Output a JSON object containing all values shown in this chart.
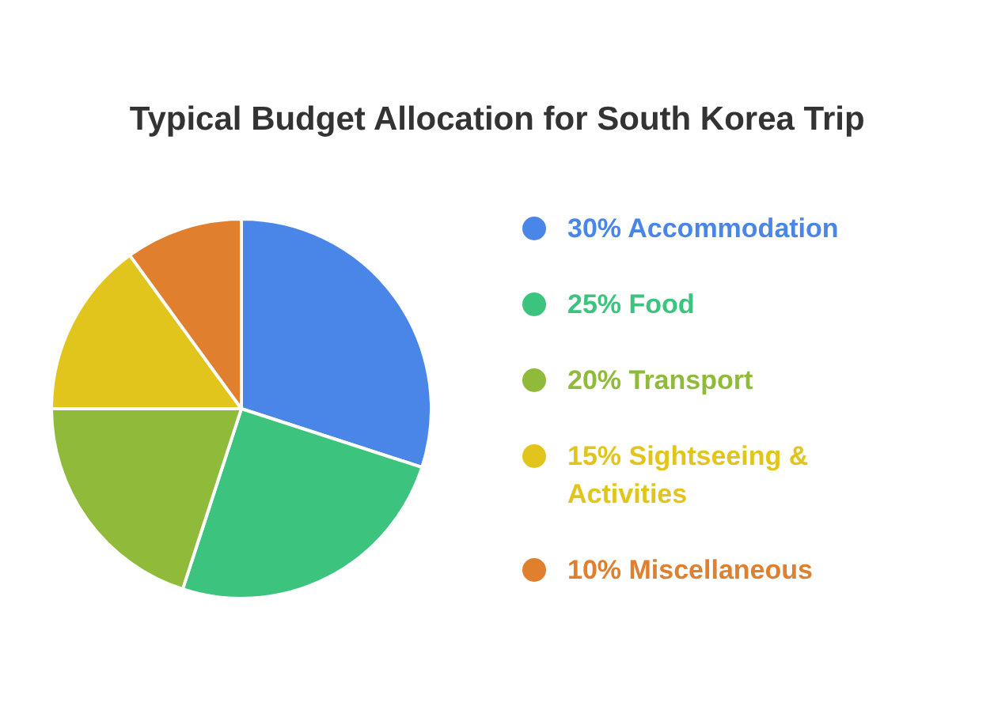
{
  "chart_data": {
    "type": "pie",
    "title": "Typical Budget Allocation for South Korea Trip",
    "categories": [
      "Accommodation",
      "Food",
      "Transport",
      "Sightseeing & Activities",
      "Miscellaneous"
    ],
    "values": [
      30,
      25,
      20,
      15,
      10
    ],
    "value_labels": [
      "30%",
      "25%",
      "20%",
      "15%",
      "10%"
    ],
    "colors": [
      "#4a86e8",
      "#3cc47e",
      "#8fba3a",
      "#e2c51c",
      "#e07f2e"
    ],
    "legend": "right"
  }
}
